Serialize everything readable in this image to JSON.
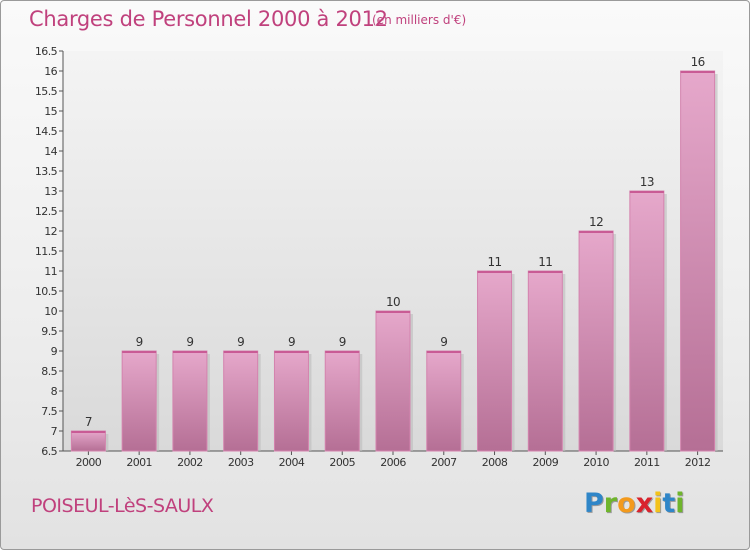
{
  "header": {
    "title": "Charges de Personnel 2000 à 2012",
    "subtitle": "(en milliers d'€)"
  },
  "footer": {
    "commune": "POISEUL-LèS-SAULX",
    "logo_letters": [
      "P",
      "r",
      "o",
      "x",
      "i",
      "t",
      "i"
    ],
    "logo_colors": [
      "#2f86c8",
      "#6fb52c",
      "#f39a1d",
      "#d9232d",
      "#f3c21b",
      "#2f86c8",
      "#6fb52c"
    ]
  },
  "colors": {
    "bar_light": "#e6a8cb",
    "bar_dark": "#b56f95",
    "accent": "#c0417d"
  },
  "chart_data": {
    "type": "bar",
    "title": "Charges de Personnel 2000 à 2012",
    "subtitle": "(en milliers d'€)",
    "categories": [
      "2000",
      "2001",
      "2002",
      "2003",
      "2004",
      "2005",
      "2006",
      "2007",
      "2008",
      "2009",
      "2010",
      "2011",
      "2012"
    ],
    "values": [
      7,
      9,
      9,
      9,
      9,
      9,
      10,
      9,
      11,
      11,
      12,
      13,
      16
    ],
    "ylim": [
      6.5,
      16.5
    ],
    "yticks": [
      "6.5",
      "7",
      "7.5",
      "8",
      "8.5",
      "9",
      "9.5",
      "10",
      "10.5",
      "11",
      "11.5",
      "12",
      "12.5",
      "13",
      "13.5",
      "14",
      "14.5",
      "15",
      "15.5",
      "16",
      "16.5"
    ],
    "grid": false,
    "legend": "none"
  }
}
